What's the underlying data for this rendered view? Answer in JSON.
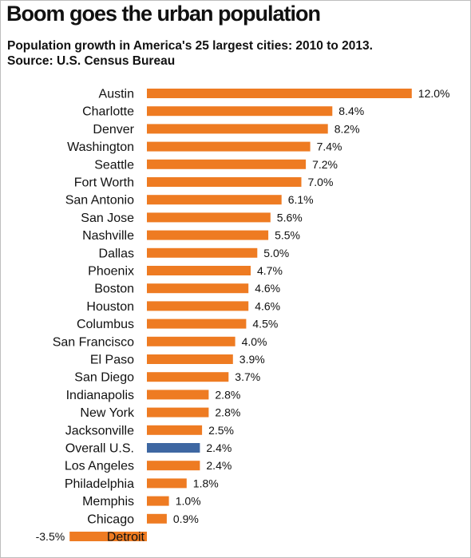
{
  "title": "Boom goes the urban population",
  "subtitle": "Population growth in America's 25 largest cities: 2010 to 2013.",
  "source": "Source: U.S. Census Bureau",
  "colors": {
    "bar": "#ee7b22",
    "highlight": "#3e67a2"
  },
  "chart_data": {
    "type": "bar",
    "orientation": "horizontal",
    "title": "Boom goes the urban population",
    "subtitle": "Population growth in America's 25 largest cities: 2010 to 2013.",
    "source": "Source: U.S. Census Bureau",
    "xlabel": "",
    "ylabel": "",
    "grid": false,
    "unit": "%",
    "categories": [
      "Austin",
      "Charlotte",
      "Denver",
      "Washington",
      "Seattle",
      "Fort Worth",
      "San Antonio",
      "San Jose",
      "Nashville",
      "Dallas",
      "Phoenix",
      "Boston",
      "Houston",
      "Columbus",
      "San Francisco",
      "El Paso",
      "San Diego",
      "Indianapolis",
      "New York",
      "Jacksonville",
      "Overall U.S.",
      "Los Angeles",
      "Philadelphia",
      "Memphis",
      "Chicago",
      "Detroit"
    ],
    "values": [
      12.0,
      8.4,
      8.2,
      7.4,
      7.2,
      7.0,
      6.1,
      5.6,
      5.5,
      5.0,
      4.7,
      4.6,
      4.6,
      4.5,
      4.0,
      3.9,
      3.7,
      2.8,
      2.8,
      2.5,
      2.4,
      2.4,
      1.8,
      1.0,
      0.9,
      -3.5
    ],
    "value_labels": [
      "12.0%",
      "8.4%",
      "8.2%",
      "7.4%",
      "7.2%",
      "7.0%",
      "6.1%",
      "5.6%",
      "5.5%",
      "5.0%",
      "4.7%",
      "4.6%",
      "4.6%",
      "4.5%",
      "4.0%",
      "3.9%",
      "3.7%",
      "2.8%",
      "2.8%",
      "2.5%",
      "2.4%",
      "2.4%",
      "1.8%",
      "1.0%",
      "0.9%",
      "-3.5%"
    ],
    "highlight": "Overall U.S."
  }
}
